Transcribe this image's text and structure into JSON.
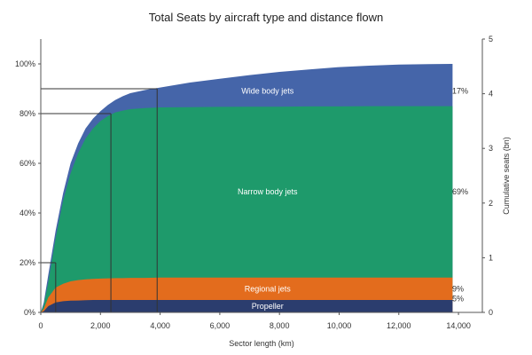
{
  "chart_data": {
    "type": "area",
    "title": "Total Seats by aircraft type and distance flown",
    "xlabel": "Sector length (km)",
    "ylabel_right": "Cumulative seats (bn)",
    "xlim": [
      0,
      14800
    ],
    "ylim_left": [
      0,
      1.0
    ],
    "ylim_right": [
      0,
      5
    ],
    "x_ticks": [
      0,
      2000,
      4000,
      6000,
      8000,
      10000,
      12000,
      14000
    ],
    "x_tick_labels": [
      "0",
      "2,000",
      "4,000",
      "6,000",
      "8,000",
      "10,000",
      "12,000",
      "14,000"
    ],
    "y_left_ticks": [
      0,
      0.2,
      0.4,
      0.6,
      0.8,
      1.0
    ],
    "y_left_tick_labels": [
      "0%",
      "20%",
      "40%",
      "60%",
      "80%",
      "100%"
    ],
    "y_right_ticks": [
      0,
      1,
      2,
      3,
      4,
      5
    ],
    "y_right_tick_labels": [
      "0",
      "1",
      "2",
      "3",
      "4",
      "5"
    ],
    "x": [
      0,
      100,
      250,
      500,
      750,
      1000,
      1250,
      1500,
      1750,
      2000,
      2250,
      2500,
      2750,
      3000,
      3500,
      4000,
      5000,
      6000,
      7000,
      8000,
      9000,
      10000,
      11000,
      12000,
      13000,
      13800
    ],
    "series": [
      {
        "name": "Propeller",
        "color": "#2b3d6e",
        "pct": "5%",
        "values": [
          0,
          0.005,
          0.025,
          0.04,
          0.045,
          0.047,
          0.048,
          0.049,
          0.05,
          0.05,
          0.05,
          0.05,
          0.05,
          0.05,
          0.05,
          0.05,
          0.05,
          0.05,
          0.05,
          0.05,
          0.05,
          0.05,
          0.05,
          0.05,
          0.05,
          0.05
        ]
      },
      {
        "name": "Regional jets",
        "color": "#e36c1d",
        "pct": "9%",
        "values": [
          0,
          0.015,
          0.06,
          0.1,
          0.115,
          0.125,
          0.13,
          0.133,
          0.135,
          0.136,
          0.137,
          0.138,
          0.138,
          0.139,
          0.139,
          0.14,
          0.14,
          0.14,
          0.14,
          0.14,
          0.14,
          0.14,
          0.14,
          0.14,
          0.14,
          0.14
        ]
      },
      {
        "name": "Narrow body jets",
        "color": "#1e9a6b",
        "pct": "69%",
        "values": [
          0,
          0.03,
          0.12,
          0.3,
          0.45,
          0.56,
          0.64,
          0.7,
          0.74,
          0.77,
          0.79,
          0.805,
          0.812,
          0.818,
          0.822,
          0.825,
          0.826,
          0.827,
          0.828,
          0.828,
          0.829,
          0.829,
          0.83,
          0.83,
          0.83,
          0.83
        ]
      },
      {
        "name": "Wide body jets",
        "color": "#4565a9",
        "pct": "17%",
        "values": [
          0,
          0.04,
          0.15,
          0.33,
          0.48,
          0.6,
          0.68,
          0.74,
          0.78,
          0.81,
          0.835,
          0.855,
          0.87,
          0.882,
          0.895,
          0.905,
          0.925,
          0.94,
          0.955,
          0.968,
          0.978,
          0.987,
          0.993,
          0.997,
          0.999,
          1.0
        ]
      }
    ],
    "reference_lines": [
      {
        "x": 500,
        "y": 0.2
      },
      {
        "x": 2350,
        "y": 0.8
      },
      {
        "x": 3900,
        "y": 0.9
      }
    ],
    "grid": false,
    "legend": "none"
  }
}
